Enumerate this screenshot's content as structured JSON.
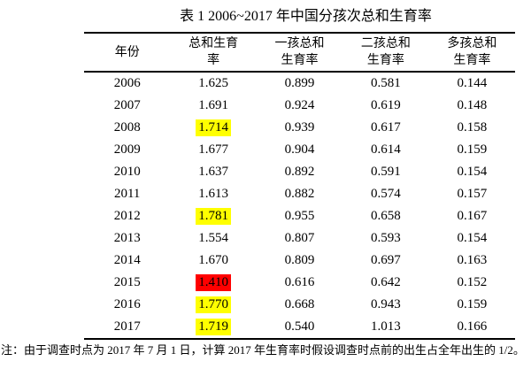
{
  "caption": "表 1 2006~2017 年中国分孩次总和生育率",
  "header": {
    "year": "年份",
    "cols": [
      {
        "line1": "总和生育",
        "line2": "率"
      },
      {
        "line1": "一孩总和",
        "line2": "生育率"
      },
      {
        "line1": "二孩总和",
        "line2": "生育率"
      },
      {
        "line1": "多孩总和",
        "line2": "生育率"
      }
    ]
  },
  "highlight_colors": {
    "none": "transparent",
    "yellow": "#ffff00",
    "red": "#ff0000"
  },
  "table": {
    "rows": [
      {
        "year": "2006",
        "tfr": "1.625",
        "first": "0.899",
        "second": "0.581",
        "multi": "0.144",
        "tfr_highlight": "none"
      },
      {
        "year": "2007",
        "tfr": "1.691",
        "first": "0.924",
        "second": "0.619",
        "multi": "0.148",
        "tfr_highlight": "none"
      },
      {
        "year": "2008",
        "tfr": "1.714",
        "first": "0.939",
        "second": "0.617",
        "multi": "0.158",
        "tfr_highlight": "yellow"
      },
      {
        "year": "2009",
        "tfr": "1.677",
        "first": "0.904",
        "second": "0.614",
        "multi": "0.159",
        "tfr_highlight": "none"
      },
      {
        "year": "2010",
        "tfr": "1.637",
        "first": "0.892",
        "second": "0.591",
        "multi": "0.154",
        "tfr_highlight": "none"
      },
      {
        "year": "2011",
        "tfr": "1.613",
        "first": "0.882",
        "second": "0.574",
        "multi": "0.157",
        "tfr_highlight": "none"
      },
      {
        "year": "2012",
        "tfr": "1.781",
        "first": "0.955",
        "second": "0.658",
        "multi": "0.167",
        "tfr_highlight": "yellow"
      },
      {
        "year": "2013",
        "tfr": "1.554",
        "first": "0.807",
        "second": "0.593",
        "multi": "0.154",
        "tfr_highlight": "none"
      },
      {
        "year": "2014",
        "tfr": "1.670",
        "first": "0.809",
        "second": "0.697",
        "multi": "0.163",
        "tfr_highlight": "none"
      },
      {
        "year": "2015",
        "tfr": "1.410",
        "first": "0.616",
        "second": "0.642",
        "multi": "0.152",
        "tfr_highlight": "red"
      },
      {
        "year": "2016",
        "tfr": "1.770",
        "first": "0.668",
        "second": "0.943",
        "multi": "0.159",
        "tfr_highlight": "yellow"
      },
      {
        "year": "2017",
        "tfr": "1.719",
        "first": "0.540",
        "second": "1.013",
        "multi": "0.166",
        "tfr_highlight": "yellow"
      }
    ]
  },
  "note": "注：由于调查时点为 2017 年 7 月 1 日，计算 2017 年生育率时假设调查时点前的出生占全年出生的 1/2。"
}
